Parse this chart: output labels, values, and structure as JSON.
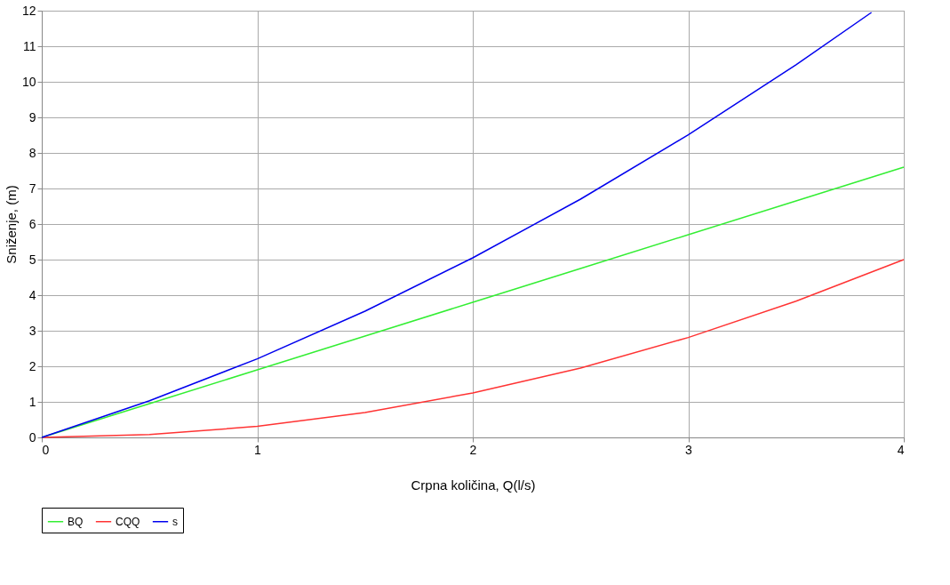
{
  "chart_data": {
    "type": "line",
    "xlabel": "Crpna količina, Q(l/s)",
    "ylabel": "Sniženje, (m)",
    "x": [
      0,
      0.5,
      1,
      1.5,
      2,
      2.5,
      3,
      3.5,
      4
    ],
    "series": [
      {
        "name": "BQ",
        "color": "#33ee33",
        "values": [
          0,
          0.95,
          1.9,
          2.85,
          3.8,
          4.75,
          5.7,
          6.65,
          7.6
        ]
      },
      {
        "name": "CQQ",
        "color": "#ff3333",
        "values": [
          0,
          0.08,
          0.31,
          0.7,
          1.25,
          1.95,
          2.81,
          3.83,
          5
        ]
      },
      {
        "name": "s",
        "color": "#0000ee",
        "x": [
          0,
          0.5,
          1,
          1.5,
          2,
          2.5,
          3,
          3.5,
          3.85
        ],
        "values": [
          0,
          1.03,
          2.21,
          3.55,
          5.05,
          6.7,
          8.51,
          10.48,
          11.95
        ]
      }
    ],
    "xlim": [
      0,
      4
    ],
    "xticks": [
      0,
      1,
      2,
      3,
      4
    ],
    "ylim": [
      0,
      12
    ],
    "yticks": [
      0,
      1,
      2,
      3,
      4,
      5,
      6,
      7,
      8,
      9,
      10,
      11,
      12
    ],
    "grid": true,
    "legend": "bottom",
    "marker": "none",
    "line_style": "solid"
  }
}
